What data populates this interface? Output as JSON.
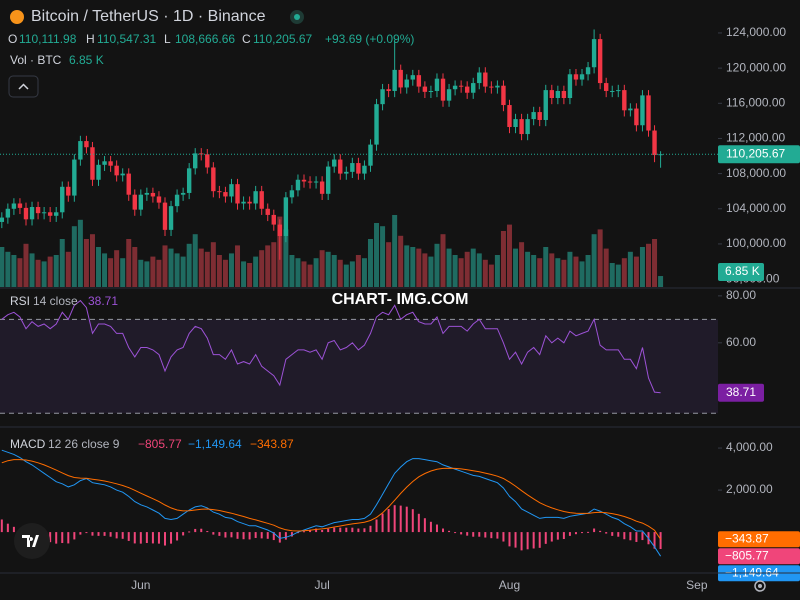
{
  "chart_data": {
    "type": "candlestick",
    "symbol": "Bitcoin / TetherUS · 1D · Binance",
    "ohlc": [
      {
        "key": "O",
        "text": "110,111.98"
      },
      {
        "key": "H",
        "text": "110,547.31"
      },
      {
        "key": "L",
        "text": "108,666.66"
      },
      {
        "key": "C",
        "text": "110,205.67"
      }
    ],
    "change": "+93.69 (+0.09%)",
    "watermark": "CHART- IMG.COM",
    "up_color": "#22ab94",
    "down_color": "#f23645",
    "xlim": [
      -0.3,
      118.5
    ],
    "xticks": [
      {
        "value": 23,
        "label": "Jun"
      },
      {
        "value": 53,
        "label": "Jul"
      },
      {
        "value": 84,
        "label": "Aug"
      },
      {
        "value": 115,
        "label": "Sep"
      }
    ],
    "ylim": [
      95100,
      127750
    ],
    "yticks": [
      {
        "value": 124000,
        "label": "124,000.00"
      },
      {
        "value": 120000,
        "label": "120,000.00"
      },
      {
        "value": 116000,
        "label": "116,000.00"
      },
      {
        "value": 112000,
        "label": "112,000.00"
      },
      {
        "value": 108000,
        "label": "108,000.00"
      },
      {
        "value": 104000,
        "label": "104,000.00"
      },
      {
        "value": 100000,
        "label": "100,000.00"
      },
      {
        "value": 96000,
        "label": "96,000.00"
      }
    ],
    "last_price_label": "110,205.67",
    "open": [
      102500,
      103000,
      104000,
      104600,
      104100,
      102800,
      104200,
      103500,
      103600,
      103200,
      103600,
      106500,
      105500,
      109600,
      111700,
      111000,
      107300,
      109000,
      109400,
      108900,
      107800,
      108000,
      105600,
      103900,
      105600,
      105800,
      105400,
      104700,
      101600,
      104300,
      105600,
      105800,
      108600,
      110300,
      110200,
      108700,
      106000,
      105900,
      105400,
      106800,
      104600,
      104800,
      104600,
      106000,
      104000,
      103300,
      102200,
      100900,
      105300,
      106100,
      107300,
      107100,
      107000,
      107100,
      105700,
      108800,
      109600,
      108000,
      108200,
      109200,
      108000,
      108900,
      111300,
      115900,
      117600,
      117400,
      119800,
      117800,
      118700,
      119200,
      117900,
      117300,
      117400,
      118800,
      116300,
      117600,
      118000,
      117900,
      117200,
      118300,
      119500,
      117900,
      117800,
      118000,
      115800,
      113300,
      114200,
      112500,
      114200,
      115000,
      114100,
      117500,
      116600,
      117400,
      116600,
      119300,
      118700,
      119300,
      120100,
      123300,
      118300,
      117400,
      117400,
      117500,
      115200,
      115400,
      113500,
      116900,
      112900,
      110111.98
    ],
    "high": [
      103600,
      104600,
      105200,
      105200,
      104700,
      104800,
      104800,
      104200,
      104200,
      104200,
      107100,
      107100,
      110200,
      112300,
      112300,
      111600,
      109600,
      110000,
      110000,
      109500,
      108600,
      108600,
      106200,
      106200,
      106400,
      106400,
      106000,
      105300,
      104900,
      106200,
      106400,
      109200,
      110900,
      110900,
      110800,
      109300,
      106600,
      106500,
      107400,
      107400,
      105400,
      105400,
      106600,
      106600,
      104600,
      103900,
      102800,
      105900,
      106700,
      107900,
      107900,
      107700,
      107700,
      107700,
      109400,
      110200,
      110200,
      108800,
      109800,
      109800,
      109500,
      111900,
      116500,
      118200,
      118200,
      123200,
      120400,
      119300,
      119800,
      119800,
      118500,
      118000,
      119400,
      119400,
      118200,
      118600,
      118600,
      118500,
      118900,
      120100,
      120100,
      118500,
      118600,
      118600,
      116400,
      114800,
      114800,
      114800,
      115600,
      115600,
      118100,
      118100,
      118000,
      118000,
      119900,
      119900,
      119900,
      120700,
      124400,
      123900,
      118900,
      118000,
      118100,
      118100,
      116000,
      116000,
      117500,
      117500,
      113500,
      110547.31
    ],
    "low": [
      101800,
      102300,
      103300,
      103400,
      102100,
      102100,
      102800,
      102800,
      102500,
      102500,
      102900,
      104800,
      104800,
      108900,
      110300,
      106600,
      106600,
      108300,
      108200,
      107100,
      107100,
      104900,
      103200,
      103200,
      104900,
      104700,
      104000,
      100900,
      100900,
      103600,
      104900,
      105100,
      107900,
      109500,
      108000,
      105300,
      105200,
      104700,
      104700,
      103900,
      103900,
      103900,
      103900,
      103300,
      102600,
      101500,
      98200,
      100200,
      104600,
      105400,
      106400,
      106300,
      106300,
      105000,
      105000,
      108100,
      107300,
      107300,
      107500,
      107300,
      107300,
      108200,
      110600,
      115200,
      116700,
      116700,
      117100,
      117100,
      118000,
      117200,
      116600,
      116600,
      116700,
      115600,
      115600,
      116900,
      117200,
      116500,
      116500,
      117600,
      117200,
      117100,
      117100,
      115100,
      112600,
      112600,
      111800,
      111800,
      113500,
      113400,
      113400,
      115900,
      115900,
      115900,
      115900,
      118000,
      118000,
      118600,
      119400,
      117600,
      116700,
      116700,
      116700,
      114500,
      114500,
      112800,
      112800,
      112200,
      109300,
      108666.66
    ],
    "close": [
      103000,
      104000,
      104600,
      104100,
      102800,
      104200,
      103500,
      103600,
      103200,
      103600,
      106500,
      105500,
      109600,
      111700,
      111000,
      107300,
      109000,
      109400,
      108900,
      107800,
      108000,
      105600,
      103900,
      105600,
      105800,
      105400,
      104700,
      101600,
      104300,
      105600,
      105800,
      108600,
      110300,
      110200,
      108700,
      106000,
      105900,
      105400,
      106800,
      104600,
      104800,
      104600,
      106000,
      104000,
      103300,
      102200,
      100900,
      105300,
      106100,
      107300,
      107100,
      107000,
      107100,
      105700,
      108800,
      109600,
      108000,
      108200,
      109200,
      108000,
      108900,
      111300,
      115900,
      117600,
      117400,
      119800,
      117800,
      118700,
      119200,
      117900,
      117300,
      117400,
      118800,
      116300,
      117600,
      118000,
      117900,
      117200,
      118300,
      119500,
      117900,
      117800,
      118000,
      115800,
      113300,
      114200,
      112500,
      114200,
      115000,
      114100,
      117500,
      116600,
      117400,
      116600,
      119300,
      118700,
      119300,
      120100,
      123300,
      118300,
      117400,
      117400,
      117500,
      115200,
      115400,
      113500,
      116900,
      112900,
      110111.98,
      110205.67
    ],
    "volume": {
      "name": "Vol · BTC",
      "tag": "6.85 K",
      "up_color": "#1f6b61",
      "down_color": "#7e2d33",
      "values": [
        25000,
        22000,
        20000,
        18000,
        27000,
        21000,
        17000,
        16000,
        19000,
        20000,
        30000,
        22000,
        38000,
        42000,
        30000,
        33000,
        25000,
        21000,
        18000,
        23000,
        18000,
        30000,
        25000,
        17000,
        16000,
        19000,
        17000,
        26000,
        24000,
        21000,
        19000,
        27000,
        33000,
        24000,
        22000,
        28000,
        20000,
        17000,
        21000,
        26000,
        16000,
        15000,
        19000,
        23000,
        26000,
        28000,
        44000,
        36000,
        20000,
        18000,
        16000,
        14000,
        18000,
        23000,
        22000,
        20000,
        17000,
        14000,
        16000,
        20000,
        18000,
        30000,
        40000,
        38000,
        28000,
        45000,
        32000,
        26000,
        25000,
        24000,
        21000,
        19000,
        27000,
        33000,
        24000,
        20000,
        18000,
        22000,
        24000,
        21000,
        17000,
        14000,
        20000,
        35000,
        39000,
        24000,
        28000,
        22000,
        20000,
        18000,
        25000,
        21000,
        18000,
        17000,
        22000,
        19000,
        16000,
        20000,
        33000,
        36000,
        24000,
        15000,
        14000,
        18000,
        22000,
        19000,
        25000,
        27000,
        30000,
        6850
      ]
    },
    "rsi": {
      "name": "RSI",
      "params": "14 close",
      "last_label": "38.71",
      "color": "#9c52d6",
      "ylim": [
        25,
        82.5
      ],
      "yticks": [
        {
          "value": 80,
          "label": "80.00"
        },
        {
          "value": 60,
          "label": "60.00"
        }
      ],
      "bands": [
        70,
        30
      ],
      "values": [
        70,
        72,
        73,
        71,
        66,
        69,
        67,
        68,
        66,
        68,
        73,
        70,
        76,
        78,
        75,
        64,
        68,
        68,
        67,
        64,
        64,
        58,
        54,
        58,
        58,
        57,
        55,
        48,
        54,
        57,
        58,
        64,
        67,
        66,
        62,
        55,
        55,
        53,
        57,
        51,
        52,
        51,
        55,
        50,
        48,
        46,
        42,
        53,
        55,
        57,
        57,
        56,
        57,
        53,
        60,
        61,
        57,
        58,
        60,
        57,
        59,
        64,
        71,
        73,
        72,
        76,
        70,
        72,
        73,
        69,
        68,
        68,
        71,
        64,
        67,
        67,
        67,
        65,
        68,
        70,
        66,
        66,
        66,
        60,
        53,
        56,
        51,
        56,
        58,
        55,
        63,
        60,
        62,
        60,
        65,
        63,
        64,
        65,
        70,
        59,
        57,
        57,
        57,
        53,
        53,
        49,
        58,
        45,
        39,
        38.71
      ]
    },
    "macd": {
      "name": "MACD",
      "params": "12 26 close 9",
      "ylim": [
        -1900,
        4860
      ],
      "yticks": [
        {
          "value": 4000,
          "label": "4,000.00"
        },
        {
          "value": 2000,
          "label": "2,000.00"
        }
      ],
      "hist": {
        "color": "#f0457a",
        "last_label": "−805.77",
        "values": [
          600,
          400,
          250,
          100,
          -80,
          -180,
          -300,
          -400,
          -480,
          -550,
          -520,
          -540,
          -350,
          -120,
          -10,
          -170,
          -180,
          -180,
          -220,
          -300,
          -320,
          -420,
          -540,
          -550,
          -520,
          -540,
          -550,
          -640,
          -550,
          -400,
          -160,
          30,
          150,
          160,
          50,
          -120,
          -180,
          -260,
          -250,
          -320,
          -340,
          -350,
          -280,
          -300,
          -320,
          -380,
          -500,
          -360,
          -210,
          -50,
          40,
          110,
          170,
          100,
          160,
          210,
          210,
          210,
          210,
          170,
          180,
          300,
          600,
          880,
          1100,
          1280,
          1260,
          1210,
          1090,
          870,
          660,
          490,
          360,
          170,
          60,
          -30,
          -110,
          -170,
          -220,
          -220,
          -260,
          -290,
          -310,
          -450,
          -680,
          -740,
          -870,
          -820,
          -780,
          -750,
          -560,
          -450,
          -360,
          -330,
          -180,
          -100,
          -40,
          10,
          170,
          60,
          -70,
          -180,
          -220,
          -340,
          -390,
          -470,
          -380,
          -580,
          -790,
          -805.77
        ]
      },
      "macd_line": {
        "color": "#2196f3",
        "last_label": "−1,149.64",
        "values": [
          3900,
          3800,
          3700,
          3550,
          3350,
          3200,
          3000,
          2800,
          2600,
          2400,
          2300,
          2150,
          2250,
          2450,
          2550,
          2350,
          2300,
          2250,
          2150,
          2000,
          1900,
          1700,
          1450,
          1300,
          1200,
          1050,
          900,
          650,
          600,
          650,
          850,
          1050,
          1200,
          1250,
          1150,
          950,
          850,
          700,
          650,
          500,
          400,
          300,
          300,
          200,
          100,
          -50,
          -300,
          -250,
          -150,
          0,
          100,
          200,
          300,
          250,
          350,
          450,
          500,
          550,
          600,
          600,
          650,
          850,
          1300,
          1800,
          2300,
          2800,
          3100,
          3350,
          3500,
          3500,
          3450,
          3400,
          3350,
          3200,
          3100,
          3000,
          2900,
          2800,
          2700,
          2650,
          2550,
          2450,
          2350,
          2100,
          1700,
          1450,
          1100,
          950,
          800,
          650,
          700,
          700,
          700,
          650,
          750,
          800,
          850,
          900,
          1100,
          1000,
          850,
          700,
          600,
          400,
          250,
          50,
          50,
          -300,
          -700,
          -1149.64
        ]
      },
      "signal": {
        "color": "#ff6d00",
        "last_label": "−343.87",
        "values": [
          3300,
          3400,
          3450,
          3450,
          3430,
          3380,
          3300,
          3200,
          3080,
          2950,
          2820,
          2690,
          2600,
          2570,
          2560,
          2520,
          2480,
          2430,
          2370,
          2300,
          2220,
          2120,
          1990,
          1850,
          1720,
          1590,
          1450,
          1290,
          1150,
          1050,
          1010,
          1020,
          1050,
          1090,
          1100,
          1070,
          1030,
          960,
          900,
          820,
          740,
          650,
          580,
          500,
          420,
          330,
          200,
          110,
          60,
          50,
          60,
          90,
          130,
          150,
          190,
          240,
          290,
          340,
          390,
          430,
          470,
          550,
          700,
          920,
          1200,
          1520,
          1840,
          2140,
          2410,
          2630,
          2790,
          2910,
          2990,
          3030,
          3040,
          3030,
          3010,
          2970,
          2920,
          2870,
          2810,
          2740,
          2660,
          2550,
          2380,
          2190,
          1970,
          1770,
          1580,
          1400,
          1260,
          1150,
          1060,
          980,
          930,
          900,
          890,
          890,
          930,
          940,
          920,
          880,
          820,
          740,
          640,
          520,
          430,
          280,
          90,
          -343.87
        ]
      }
    }
  }
}
